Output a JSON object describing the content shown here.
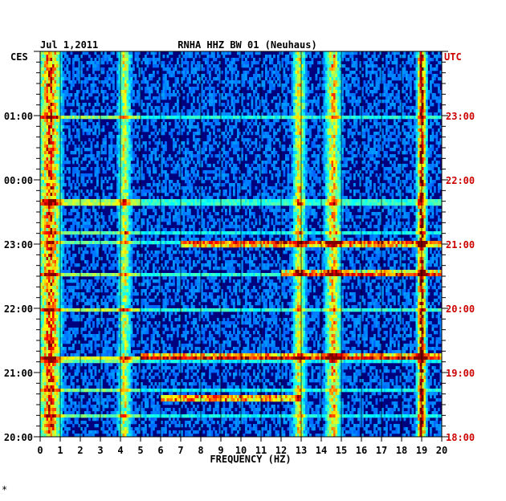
{
  "chart_data": {
    "type": "heatmap",
    "date": "Jul 1,2011",
    "title": "RNHA HHZ BW 01 (Neuhaus)",
    "xlabel": "FREQUENCY (HZ)",
    "left_axis_label": "CES",
    "right_axis_label": "UTC",
    "x_ticks": [
      "0",
      "1",
      "2",
      "3",
      "4",
      "5",
      "6",
      "7",
      "8",
      "9",
      "10",
      "11",
      "12",
      "13",
      "14",
      "15",
      "16",
      "17",
      "18",
      "19",
      "20"
    ],
    "xlim": [
      0,
      20
    ],
    "left_ticks": [
      "01:00",
      "00:00",
      "23:00",
      "22:00",
      "21:00",
      "20:00"
    ],
    "right_ticks": [
      "23:00",
      "22:00",
      "21:00",
      "20:00",
      "19:00",
      "18:00"
    ],
    "ylim_utc_hours": [
      18,
      24
    ],
    "grid": true,
    "colors": {
      "background": "#00007f",
      "axis": "#000000",
      "utc_labels": "#cc0000"
    },
    "features": [
      {
        "type": "vertical_band",
        "freq_hz": 0.5,
        "width_hz": 0.7,
        "intensity": 0.75
      },
      {
        "type": "vertical_band",
        "freq_hz": 4.2,
        "width_hz": 0.4,
        "intensity": 0.45
      },
      {
        "type": "vertical_band",
        "freq_hz": 12.9,
        "width_hz": 0.4,
        "intensity": 0.5
      },
      {
        "type": "vertical_band",
        "freq_hz": 14.6,
        "width_hz": 0.5,
        "intensity": 0.55
      },
      {
        "type": "vertical_band",
        "freq_hz": 19.0,
        "width_hz": 0.3,
        "intensity": 0.85
      },
      {
        "type": "horizontal_band",
        "utc_hour": 21.0,
        "freq_range": [
          7,
          20
        ],
        "intensity": 0.55
      },
      {
        "type": "horizontal_band",
        "utc_hour": 20.55,
        "freq_range": [
          12,
          20
        ],
        "intensity": 0.5
      },
      {
        "type": "horizontal_band",
        "utc_hour": 19.25,
        "freq_range": [
          5,
          20
        ],
        "intensity": 0.55
      },
      {
        "type": "horizontal_band",
        "utc_hour": 18.6,
        "freq_range": [
          6,
          13
        ],
        "intensity": 0.6
      }
    ]
  },
  "footer_mark": "*"
}
